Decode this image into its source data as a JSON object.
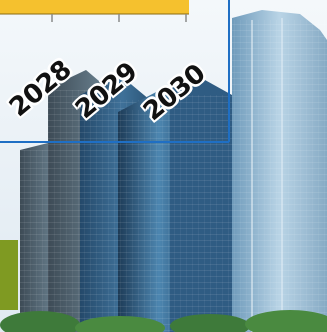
{
  "timeline": {
    "years": [
      "2028",
      "2029",
      "2030"
    ],
    "bar_color": "#f5c12e",
    "axis_color": "#1f6fc4"
  },
  "colors": {
    "sky": "#e6eef5",
    "glass_dark": "#2a4a66",
    "glass_mid": "#4b7ea8",
    "glass_light": "#a8c8e0",
    "trees": "#3e7a3a",
    "green_panel": "#7f9a22"
  }
}
